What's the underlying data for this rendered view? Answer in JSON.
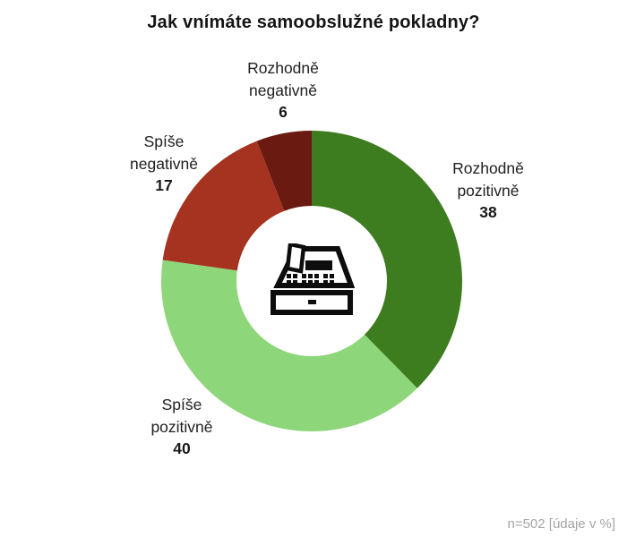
{
  "title": "Jak vnímáte samoobslužné pokladny?",
  "note": "n=502 [údaje v %]",
  "center_icon": "cash-register",
  "chart_data": {
    "type": "pie",
    "subtype": "donut",
    "title": "Jak vnímáte samoobslužné pokladny?",
    "unit": "%",
    "sample_size": 502,
    "sample_note": "n=502 [údaje v %]",
    "start_angle_deg": 0,
    "direction": "clockwise",
    "inner_radius_ratio": 0.5,
    "legend_position": "outside-labels",
    "segments": [
      {
        "id": "rozhodne-pozitivne",
        "label": "Rozhodně pozitivně",
        "value": 38,
        "color": "#3E7C20"
      },
      {
        "id": "spise-pozitivne",
        "label": "Spíše pozitivně",
        "value": 40,
        "color": "#8DD67A"
      },
      {
        "id": "spise-negativne",
        "label": "Spíše negativně",
        "value": 17,
        "color": "#A53320"
      },
      {
        "id": "rozhodne-negativne",
        "label": "Rozhodně negativně",
        "value": 6,
        "color": "#6B1A11"
      }
    ]
  }
}
